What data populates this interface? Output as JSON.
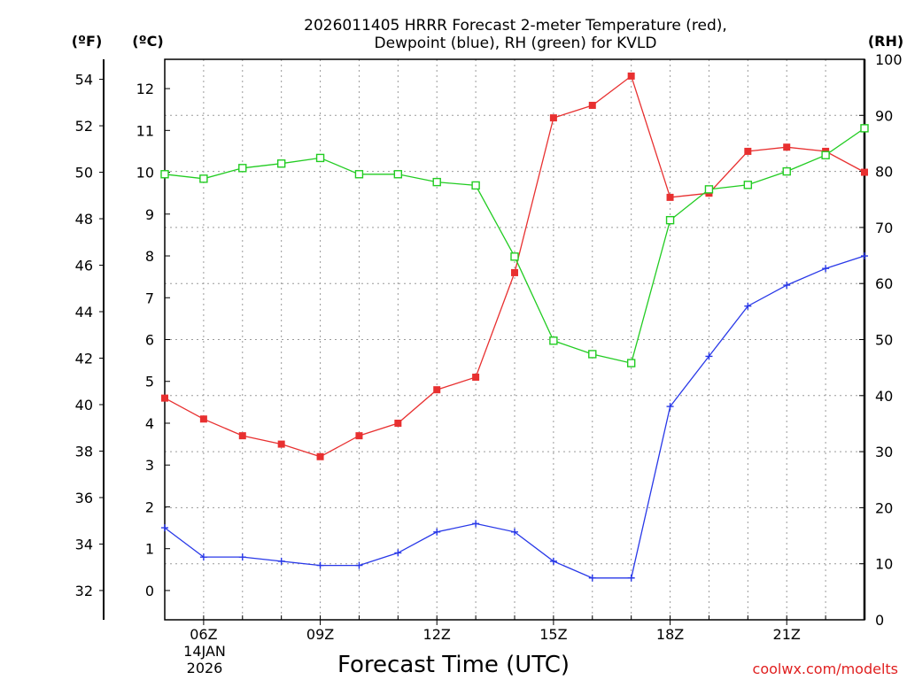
{
  "chart_data": {
    "type": "line",
    "title_line1": "2026011405 HRRR Forecast 2-meter Temperature (red),",
    "title_line2": "Dewpoint (blue), RH (green) for KVLD",
    "xlabel": "Forecast Time (UTC)",
    "x_hours": [
      5,
      6,
      7,
      8,
      9,
      10,
      11,
      12,
      13,
      14,
      15,
      16,
      17,
      18,
      19,
      20,
      21,
      22,
      23
    ],
    "xlim": [
      5,
      23
    ],
    "x_ticks": [
      {
        "hour": 6,
        "label": "06Z"
      },
      {
        "hour": 9,
        "label": "09Z"
      },
      {
        "hour": 12,
        "label": "12Z"
      },
      {
        "hour": 15,
        "label": "15Z"
      },
      {
        "hour": 18,
        "label": "18Z"
      },
      {
        "hour": 21,
        "label": "21Z"
      }
    ],
    "date_label_line1": "14JAN",
    "date_label_line2": "2026",
    "axes": {
      "fahrenheit": {
        "unit_label": "(ºF)",
        "ticks": [
          "32",
          "34",
          "36",
          "38",
          "40",
          "42",
          "44",
          "46",
          "48",
          "50",
          "52",
          "54"
        ]
      },
      "celsius": {
        "unit_label": "(ºC)",
        "range": [
          -0.7,
          12.7
        ],
        "ticks": [
          "0",
          "1",
          "2",
          "3",
          "4",
          "5",
          "6",
          "7",
          "8",
          "9",
          "10",
          "11",
          "12"
        ]
      },
      "rh": {
        "unit_label": "(RH)",
        "range": [
          0,
          100
        ],
        "ticks": [
          "0",
          "10",
          "20",
          "30",
          "40",
          "50",
          "60",
          "70",
          "80",
          "90",
          "100"
        ]
      }
    },
    "grid": true,
    "series": [
      {
        "variable": "temperature_c",
        "color": "#e83030",
        "marker": "filled-square",
        "axis": "celsius",
        "values": [
          4.6,
          4.1,
          3.7,
          3.5,
          3.2,
          3.7,
          4.0,
          4.8,
          5.1,
          7.6,
          11.3,
          11.6,
          12.3,
          9.4,
          9.5,
          10.5,
          10.6,
          10.5,
          10.0
        ]
      },
      {
        "variable": "dewpoint_c",
        "color": "#2838e8",
        "marker": "plus",
        "axis": "celsius",
        "values": [
          1.5,
          0.8,
          0.8,
          0.7,
          0.6,
          0.6,
          0.9,
          1.4,
          1.6,
          1.4,
          0.7,
          0.3,
          0.3,
          4.4,
          5.6,
          6.8,
          7.3,
          7.7,
          8.0
        ]
      },
      {
        "variable": "rh_percent",
        "color": "#22cc22",
        "marker": "open-square",
        "axis": "rh",
        "values": [
          79.5,
          78.7,
          80.6,
          81.4,
          82.4,
          79.5,
          79.5,
          78.1,
          77.5,
          64.8,
          49.8,
          47.4,
          45.8,
          71.3,
          76.8,
          77.6,
          80.0,
          82.9,
          87.7
        ]
      }
    ]
  },
  "credit": "coolwx.com/modelts"
}
